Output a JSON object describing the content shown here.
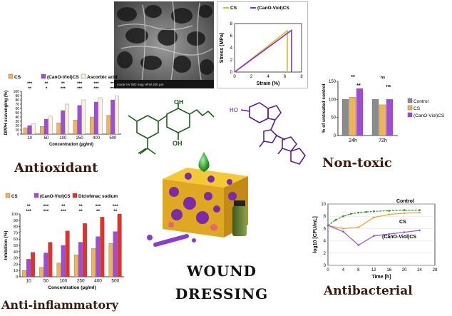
{
  "titles": {
    "antioxidant": "Antioxidant",
    "non_toxic": "Non-toxic",
    "anti_inflammatory": "Anti-inflammatory",
    "antibacterial": "Antibacterial",
    "wound": "WOUND",
    "dressing": "DRESSING"
  },
  "colors": {
    "cs": "#f0b458",
    "canoviol": "#a14bd8",
    "ascorbic": "#fbf1dd",
    "diclofenac": "#e4312b",
    "control": "#8b8b8b",
    "stress_cs": "#d4c21a",
    "stress_canoviol": "#8a2be2",
    "curve_control": "#2e8b2e",
    "curve_cs": "#e8a33b",
    "curve_canoviol": "#9b51e0"
  },
  "chart_data": [
    {
      "type": "bar",
      "id": "antioxidant",
      "ylabel": "DPPH scavenging (%)",
      "xlabel": "Concentration (µg/ml)",
      "ylim": [
        0,
        100
      ],
      "yticks": [
        "0",
        "10",
        "20",
        "30",
        "40",
        "50",
        "60",
        "70",
        "80",
        "90",
        "100"
      ],
      "categories": [
        "10",
        "50",
        "100",
        "250",
        "400",
        "500"
      ],
      "series": [
        {
          "name": "CS",
          "values": [
            15,
            18,
            26,
            33,
            40,
            44
          ]
        },
        {
          "name": "(CanO-Viol)CS",
          "values": [
            20,
            35,
            55,
            67,
            75,
            80
          ]
        },
        {
          "name": "Ascorbic acid",
          "values": [
            24,
            42,
            70,
            80,
            85,
            89
          ]
        }
      ],
      "annotations": [
        [
          "***",
          "**"
        ],
        [
          "**",
          "*"
        ],
        [
          "**",
          "***"
        ],
        [
          "***",
          "***"
        ],
        [
          "***",
          "***"
        ],
        [
          "***",
          "***"
        ]
      ]
    },
    {
      "type": "line",
      "id": "stress_strain",
      "xlabel": "Strain (%)",
      "ylabel": "Stress (MPa)",
      "xlim": [
        0,
        8
      ],
      "ylim": [
        0,
        8
      ],
      "xticks": [
        "0",
        "2",
        "4",
        "6",
        "8"
      ],
      "yticks": [
        "0",
        "2",
        "4",
        "6",
        "8"
      ],
      "series": [
        {
          "name": "CS",
          "points": [
            [
              0,
              0
            ],
            [
              6.3,
              6.8
            ],
            [
              6.3,
              0
            ]
          ]
        },
        {
          "name": "(CanO-Viol)CS",
          "points": [
            [
              0,
              0
            ],
            [
              6.8,
              6.9
            ],
            [
              6.8,
              0
            ]
          ]
        }
      ]
    },
    {
      "type": "bar",
      "id": "non_toxic",
      "ylabel": "% of untreated control",
      "ylim": [
        0,
        150
      ],
      "yticks": [
        "0",
        "50",
        "100",
        "150"
      ],
      "categories": [
        "24h",
        "72h"
      ],
      "series": [
        {
          "name": "Control",
          "values": [
            100,
            100
          ]
        },
        {
          "name": "CS",
          "values": [
            106,
            85
          ]
        },
        {
          "name": "(CanO-Viol)CS",
          "values": [
            130,
            100
          ]
        }
      ],
      "annotations": {
        "24h": [
          "**",
          "**"
        ],
        "72h": [
          "ns",
          "ns"
        ]
      }
    },
    {
      "type": "bar",
      "id": "anti_inflammatory",
      "ylabel": "Inhibition (%)",
      "xlabel": "Concentration (µg/ml)",
      "ylim": [
        0,
        100
      ],
      "yticks": [
        "0",
        "10",
        "20",
        "30",
        "40",
        "50",
        "60",
        "70",
        "80",
        "90",
        "100"
      ],
      "categories": [
        "10",
        "50",
        "100",
        "250",
        "400",
        "500"
      ],
      "series": [
        {
          "name": "CS",
          "values": [
            10,
            15,
            22,
            35,
            45,
            53
          ]
        },
        {
          "name": "(CanO-Viol)CS",
          "values": [
            28,
            38,
            50,
            55,
            64,
            72
          ]
        },
        {
          "name": "Diclofenac sodium",
          "values": [
            39,
            55,
            73,
            85,
            95,
            100
          ]
        }
      ],
      "annotations": [
        [
          "**",
          "***"
        ],
        [
          "***",
          "***"
        ],
        [
          "**",
          "***"
        ],
        [
          "**",
          "**"
        ],
        [
          "***",
          "**"
        ],
        [
          "***",
          "**"
        ]
      ]
    },
    {
      "type": "line",
      "id": "antibacterial",
      "xlabel": "Time [h]",
      "ylabel": "log10 [CFU/mL]",
      "xlim": [
        0,
        28
      ],
      "ylim": [
        0,
        10
      ],
      "xticks": [
        "0",
        "4",
        "8",
        "12",
        "16",
        "20",
        "24",
        "28"
      ],
      "yticks": [
        "0",
        "2",
        "4",
        "6",
        "8",
        "10"
      ],
      "series": [
        {
          "name": "Control",
          "x": [
            0,
            2,
            4,
            6,
            8,
            10,
            12,
            16,
            20,
            24
          ],
          "y": [
            6.5,
            7.4,
            8.0,
            8.4,
            8.6,
            8.7,
            8.8,
            8.9,
            9.0,
            9.0
          ]
        },
        {
          "name": "CS",
          "x": [
            0,
            4,
            8,
            12,
            16,
            20,
            24
          ],
          "y": [
            6.5,
            6.0,
            6.2,
            7.8,
            8.3,
            8.5,
            8.6
          ]
        },
        {
          "name": "(CanO-Viol)CS",
          "x": [
            0,
            4,
            8,
            12,
            16,
            20,
            24
          ],
          "y": [
            6.5,
            5.5,
            3.3,
            4.8,
            5.1,
            5.4,
            5.7
          ]
        }
      ]
    }
  ]
}
